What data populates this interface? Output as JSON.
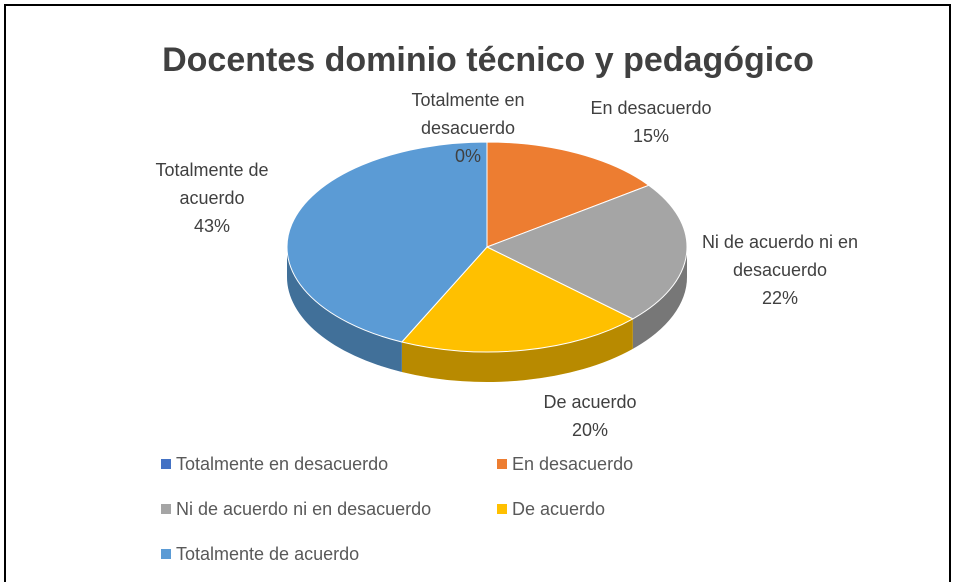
{
  "chart_data": {
    "type": "pie",
    "title": "Docentes dominio técnico y pedagógico",
    "categories": [
      "Totalmente en desacuerdo",
      "En desacuerdo",
      "Ni de acuerdo ni en desacuerdo",
      "De acuerdo",
      "Totalmente de acuerdo"
    ],
    "values": [
      0,
      15,
      22,
      20,
      43
    ],
    "value_labels": [
      "0%",
      "15%",
      "22%",
      "20%",
      "43%"
    ],
    "colors": [
      "#4472c4",
      "#ed7d31",
      "#a5a5a5",
      "#ffc000",
      "#5b9bd5"
    ],
    "legend": "bottom"
  }
}
